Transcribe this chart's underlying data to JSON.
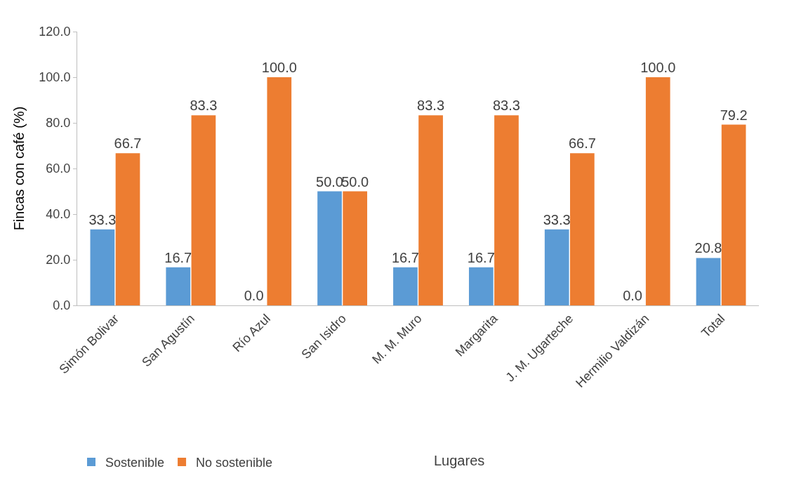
{
  "chart_data": {
    "type": "bar",
    "xlabel": "Lugares",
    "ylabel": "Fincas con café (%)",
    "categories": [
      "Simón Bolivar",
      "San Agustín",
      "Río Azul",
      "San Isidro",
      "M. M. Muro",
      "Margarita",
      "J. M. Ugarteche",
      "Hermilio Valdizán",
      "Total"
    ],
    "series": [
      {
        "name": "Sostenible",
        "color": "#5b9bd5",
        "values": [
          33.3,
          16.7,
          0.0,
          50.0,
          16.7,
          16.7,
          33.3,
          0.0,
          20.8
        ],
        "value_labels": [
          "33.3",
          "16.7",
          "0.0",
          "50.0",
          "16.7",
          "16.7",
          "33.3",
          "0.0",
          "20.8"
        ]
      },
      {
        "name": "No sostenible",
        "color": "#ed7d31",
        "values": [
          66.7,
          83.3,
          100.0,
          50.0,
          83.3,
          83.3,
          66.7,
          100.0,
          79.2
        ],
        "value_labels": [
          "66.7",
          "83.3",
          "100.0",
          "50.0",
          "83.3",
          "83.3",
          "66.7",
          "100.0",
          "79.2"
        ]
      }
    ],
    "ylim": [
      0,
      120
    ],
    "yticks": [
      {
        "value": 0,
        "label": "0.0"
      },
      {
        "value": 20,
        "label": "20.0"
      },
      {
        "value": 40,
        "label": "40.0"
      },
      {
        "value": 60,
        "label": "60.0"
      },
      {
        "value": 80,
        "label": "80.0"
      },
      {
        "value": 100,
        "label": "100.0"
      },
      {
        "value": 120,
        "label": "120.0"
      }
    ],
    "legend": "bottom left"
  }
}
